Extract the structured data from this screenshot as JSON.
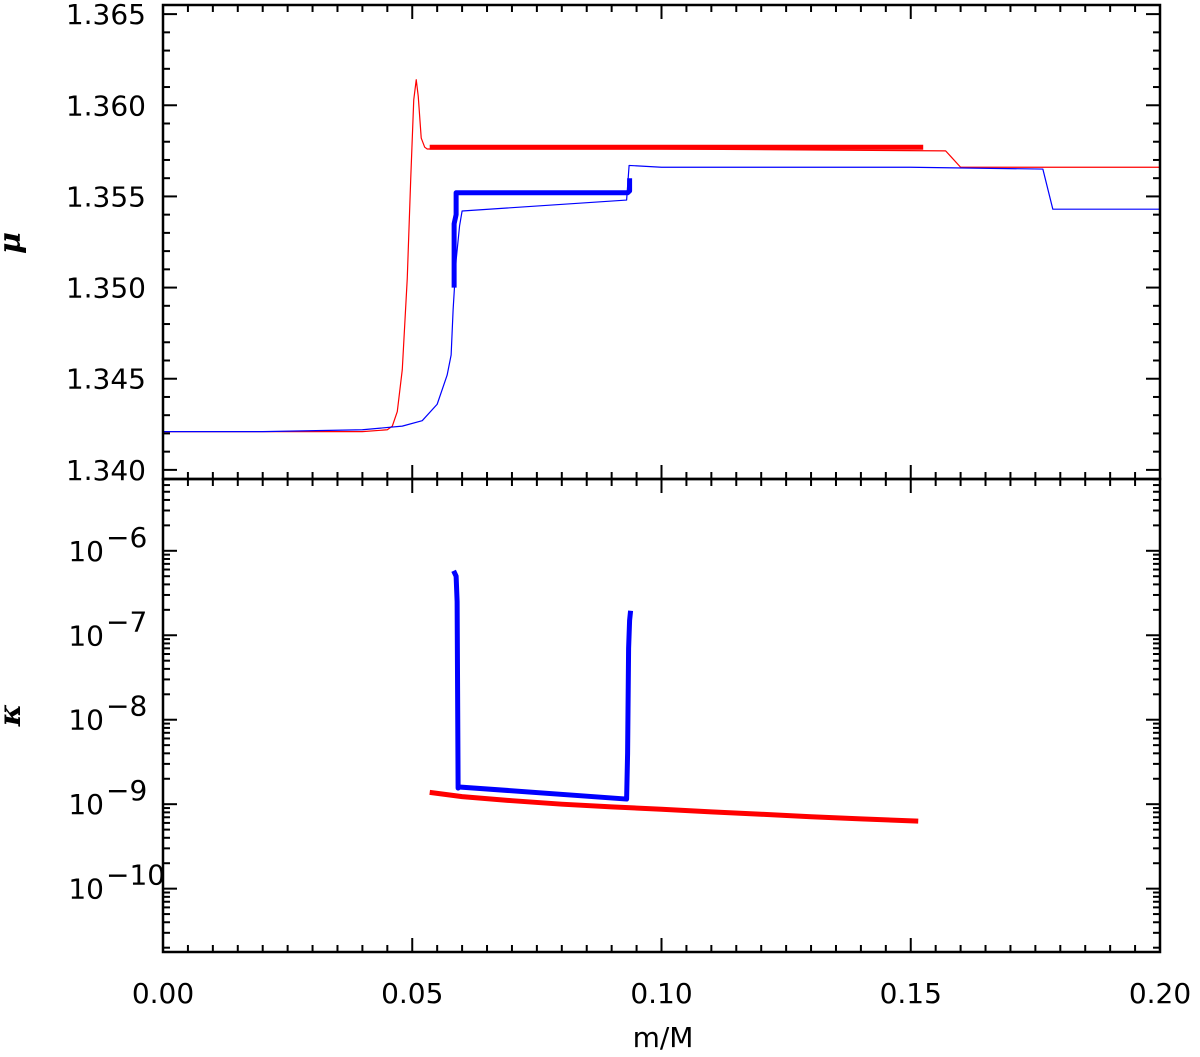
{
  "chart_data": [
    {
      "type": "line",
      "panel": "top",
      "ylabel": "μ",
      "xlabel": "",
      "xlim": [
        0.0,
        0.2
      ],
      "ylim": [
        1.3395,
        1.3655
      ],
      "yticks": [
        "1.340",
        "1.345",
        "1.350",
        "1.355",
        "1.360",
        "1.365"
      ],
      "series": [
        {
          "color": "#ff0000",
          "width": "thin",
          "x": [
            0.0,
            0.02,
            0.04,
            0.045,
            0.046,
            0.047,
            0.048,
            0.049,
            0.0497,
            0.0503,
            0.0508,
            0.0512,
            0.0518,
            0.0525,
            0.053,
            0.055,
            0.1,
            0.157,
            0.158,
            0.16,
            0.2
          ],
          "y": [
            1.3421,
            1.3421,
            1.3421,
            1.3422,
            1.3424,
            1.3432,
            1.3455,
            1.3505,
            1.356,
            1.3603,
            1.3614,
            1.3605,
            1.3582,
            1.3577,
            1.3576,
            1.3576,
            1.3576,
            1.3575,
            1.3572,
            1.3566,
            1.3566
          ]
        },
        {
          "color": "#0000ff",
          "width": "thin",
          "x": [
            0.0,
            0.02,
            0.04,
            0.048,
            0.052,
            0.055,
            0.057,
            0.0578,
            0.0582,
            0.0588,
            0.0595,
            0.06,
            0.093,
            0.0935,
            0.1,
            0.15,
            0.1765,
            0.1785,
            0.2
          ],
          "y": [
            1.3421,
            1.3421,
            1.3422,
            1.3424,
            1.3427,
            1.3436,
            1.3452,
            1.3463,
            1.3488,
            1.3515,
            1.3534,
            1.3542,
            1.3548,
            1.3567,
            1.3566,
            1.3566,
            1.3565,
            1.3543,
            1.3543
          ]
        },
        {
          "color": "#ff0000",
          "width": "thick",
          "x": [
            0.0535,
            0.1525
          ],
          "y": [
            1.3577,
            1.3577
          ]
        },
        {
          "color": "#0000ff",
          "width": "thick",
          "x": [
            0.0584,
            0.0584,
            0.0588,
            0.0588,
            0.0932,
            0.0932,
            0.0936,
            0.0936
          ],
          "y": [
            1.35,
            1.3535,
            1.354,
            1.3552,
            1.3552,
            1.3552,
            1.3553,
            1.356
          ]
        }
      ]
    },
    {
      "type": "line",
      "panel": "bottom",
      "ylabel": "κ",
      "xlabel": "m/M",
      "xlim": [
        0.0,
        0.2
      ],
      "ylim_log10": [
        -10.75,
        -5.15
      ],
      "yscale": "log",
      "yticks": [
        {
          "base": "10",
          "exp": "−10",
          "value": -10
        },
        {
          "base": "10",
          "exp": "−9",
          "value": -9
        },
        {
          "base": "10",
          "exp": "−8",
          "value": -8
        },
        {
          "base": "10",
          "exp": "−7",
          "value": -7
        },
        {
          "base": "10",
          "exp": "−6",
          "value": -6
        }
      ],
      "xticks": [
        "0.00",
        "0.05",
        "0.10",
        "0.15",
        "0.20"
      ],
      "series": [
        {
          "color": "#0000ff",
          "width": "thick",
          "x": [
            0.0583,
            0.0588,
            0.059,
            0.0592,
            0.0594,
            0.093,
            0.0932,
            0.0934,
            0.0936,
            0.0938
          ],
          "y": [
            5.8e-07,
            5e-07,
            2.5e-07,
            1.55e-09,
            1.6e-09,
            1.15e-09,
            4e-09,
            7e-08,
            1.5e-07,
            1.95e-07
          ]
        },
        {
          "color": "#ff0000",
          "width": "thick",
          "x": [
            0.0535,
            0.06,
            0.07,
            0.08,
            0.09,
            0.1,
            0.11,
            0.12,
            0.13,
            0.14,
            0.1515
          ],
          "y": [
            1.38e-09,
            1.23e-09,
            1.1e-09,
            1e-09,
            9.3e-10,
            8.7e-10,
            8.1e-10,
            7.6e-10,
            7.1e-10,
            6.7e-10,
            6.3e-10
          ]
        }
      ]
    }
  ]
}
